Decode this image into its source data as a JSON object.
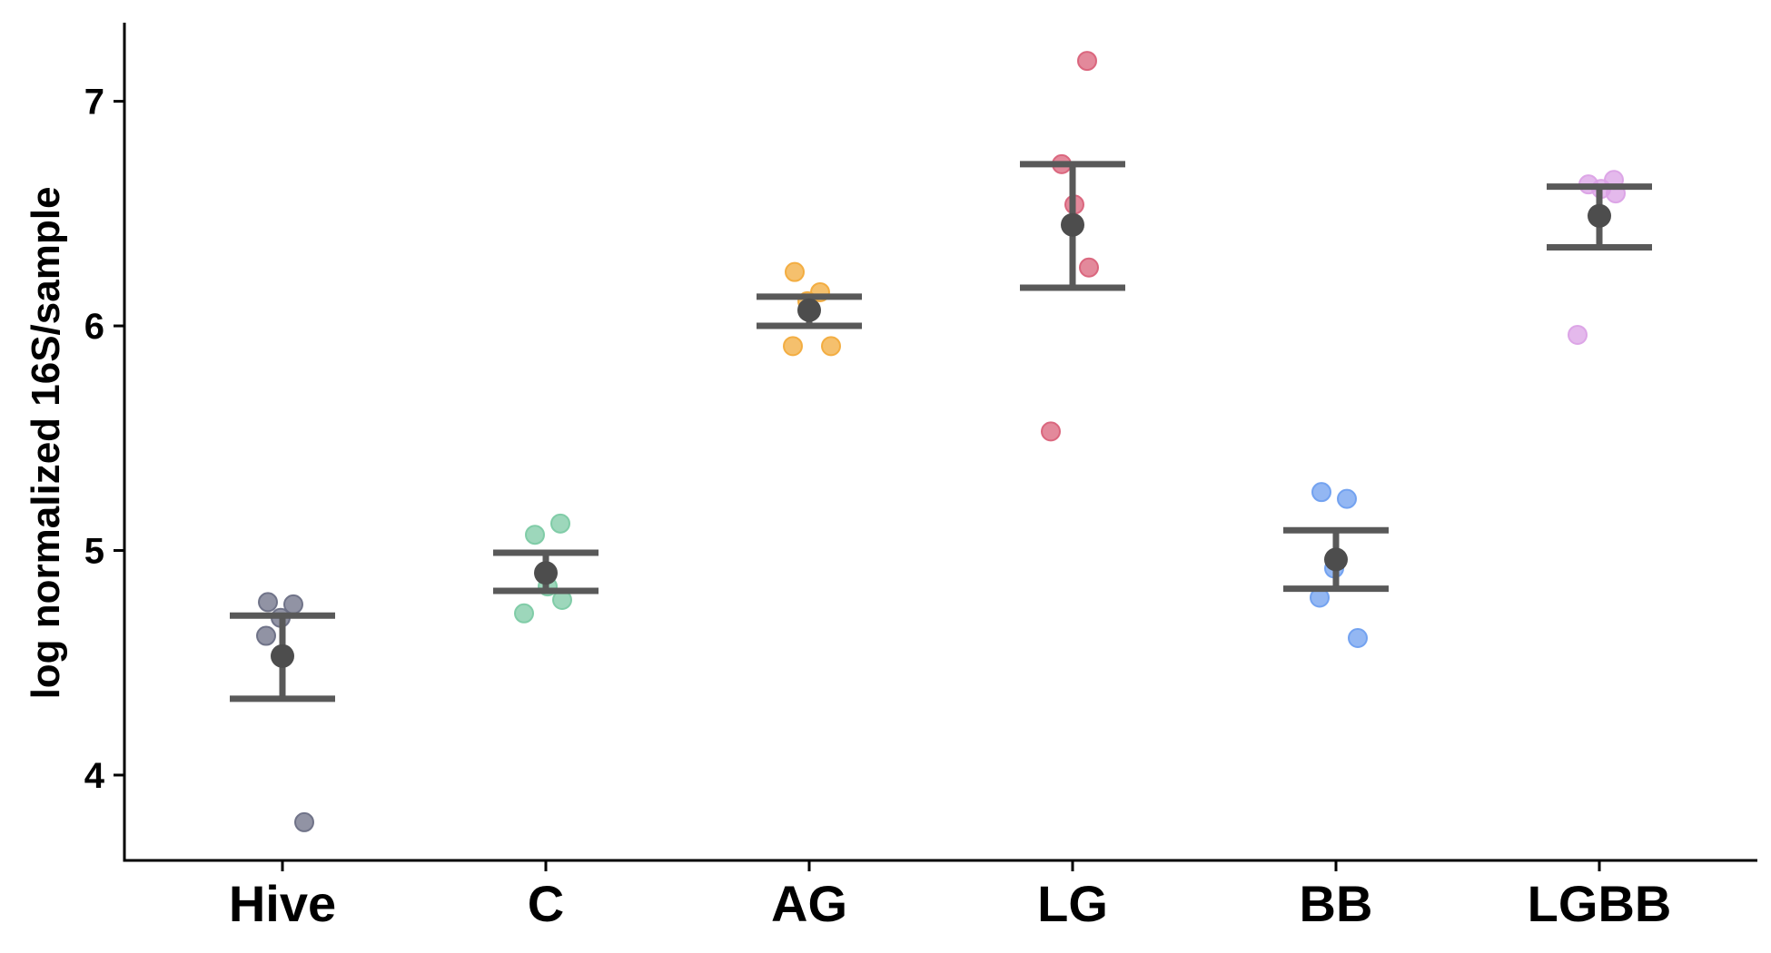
{
  "chart_data": {
    "type": "scatter",
    "title": "",
    "xlabel": "",
    "ylabel": "log normalized 16S/sample",
    "ylim": [
      3.62,
      7.35
    ],
    "yticks": [
      4,
      5,
      6,
      7
    ],
    "grid": false,
    "legend": "none",
    "categories": [
      "Hive",
      "C",
      "AG",
      "LG",
      "BB",
      "LGBB"
    ],
    "groups": [
      {
        "name": "Hive",
        "color": "#6c6f85",
        "points": [
          4.77,
          4.76,
          4.7,
          4.62,
          3.79
        ],
        "mean": 4.53,
        "ci": [
          4.34,
          4.71
        ]
      },
      {
        "name": "C",
        "color": "#7ccaa4",
        "points": [
          5.12,
          5.07,
          4.84,
          4.78,
          4.72
        ],
        "mean": 4.9,
        "ci": [
          4.82,
          4.99
        ]
      },
      {
        "name": "AG",
        "color": "#f2ab3c",
        "points": [
          6.24,
          6.15,
          6.11,
          5.91,
          5.91
        ],
        "mean": 6.07,
        "ci": [
          6.0,
          6.13
        ]
      },
      {
        "name": "LG",
        "color": "#d9627a",
        "points": [
          7.18,
          6.72,
          6.54,
          6.26,
          5.53
        ],
        "mean": 6.45,
        "ci": [
          6.17,
          6.72
        ]
      },
      {
        "name": "BB",
        "color": "#6f9fef",
        "points": [
          5.26,
          5.23,
          4.92,
          4.79,
          4.61
        ],
        "mean": 4.96,
        "ci": [
          4.83,
          5.09
        ]
      },
      {
        "name": "LGBB",
        "color": "#dba2e6",
        "points": [
          6.65,
          6.63,
          6.61,
          6.59,
          5.96
        ],
        "mean": 6.49,
        "ci": [
          6.35,
          6.62
        ]
      }
    ]
  }
}
